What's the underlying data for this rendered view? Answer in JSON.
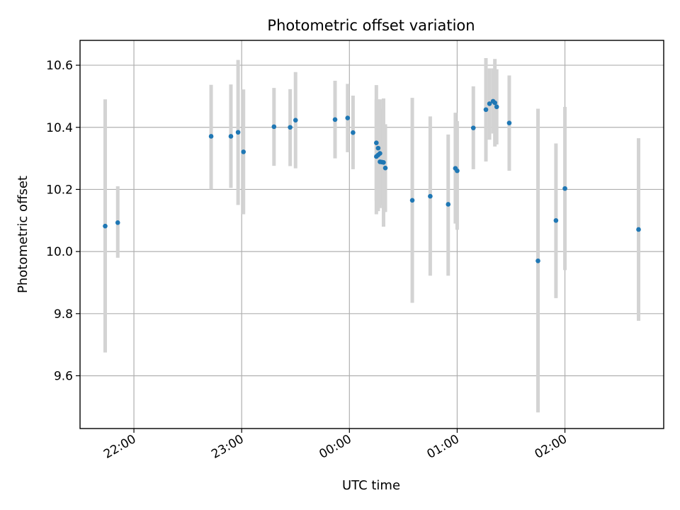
{
  "chart_data": {
    "type": "scatter",
    "title": "Photometric offset variation",
    "xlabel": "UTC time",
    "ylabel": "Photometric offset",
    "xlim": [
      "21:30",
      "02:55"
    ],
    "ylim": [
      9.43,
      10.68
    ],
    "grid": true,
    "x_ticks": [
      "22:00",
      "23:00",
      "00:00",
      "01:00",
      "02:00"
    ],
    "y_ticks": [
      9.6,
      9.8,
      10.0,
      10.2,
      10.4,
      10.6
    ],
    "marker_color": "#1f77b4",
    "errorbar_color": "#d3d3d3",
    "points": [
      {
        "x": "21:44",
        "y": 10.082,
        "ymin": 9.675,
        "ymax": 10.49
      },
      {
        "x": "21:51",
        "y": 10.093,
        "ymin": 9.98,
        "ymax": 10.21
      },
      {
        "x": "22:43",
        "y": 10.371,
        "ymin": 10.2,
        "ymax": 10.537
      },
      {
        "x": "22:54",
        "y": 10.371,
        "ymin": 10.205,
        "ymax": 10.538
      },
      {
        "x": "22:58",
        "y": 10.384,
        "ymin": 10.15,
        "ymax": 10.617
      },
      {
        "x": "23:01",
        "y": 10.321,
        "ymin": 10.12,
        "ymax": 10.522
      },
      {
        "x": "23:18",
        "y": 10.402,
        "ymin": 10.276,
        "ymax": 10.527
      },
      {
        "x": "23:27",
        "y": 10.4,
        "ymin": 10.275,
        "ymax": 10.523
      },
      {
        "x": "23:30",
        "y": 10.423,
        "ymin": 10.268,
        "ymax": 10.578
      },
      {
        "x": "23:52",
        "y": 10.425,
        "ymin": 10.3,
        "ymax": 10.55
      },
      {
        "x": "23:59",
        "y": 10.43,
        "ymin": 10.32,
        "ymax": 10.54
      },
      {
        "x": "00:02",
        "y": 10.383,
        "ymin": 10.265,
        "ymax": 10.502
      },
      {
        "x": "00:15",
        "y": 10.35,
        "ymin": 10.165,
        "ymax": 10.536
      },
      {
        "x": "00:15",
        "y": 10.306,
        "ymin": 10.12,
        "ymax": 10.49
      },
      {
        "x": "00:16",
        "y": 10.333,
        "ymin": 10.19,
        "ymax": 10.476
      },
      {
        "x": "00:16",
        "y": 10.311,
        "ymin": 10.13,
        "ymax": 10.49
      },
      {
        "x": "00:17",
        "y": 10.316,
        "ymin": 10.14,
        "ymax": 10.49
      },
      {
        "x": "00:17",
        "y": 10.289,
        "ymin": 10.16,
        "ymax": 10.42
      },
      {
        "x": "00:18",
        "y": 10.288,
        "ymin": 10.15,
        "ymax": 10.46
      },
      {
        "x": "00:19",
        "y": 10.287,
        "ymin": 10.08,
        "ymax": 10.493
      },
      {
        "x": "00:20",
        "y": 10.269,
        "ymin": 10.127,
        "ymax": 10.41
      },
      {
        "x": "00:35",
        "y": 10.165,
        "ymin": 9.835,
        "ymax": 10.495
      },
      {
        "x": "00:45",
        "y": 10.178,
        "ymin": 9.922,
        "ymax": 10.435
      },
      {
        "x": "00:55",
        "y": 10.152,
        "ymin": 9.922,
        "ymax": 10.377
      },
      {
        "x": "00:59",
        "y": 10.268,
        "ymin": 10.09,
        "ymax": 10.447
      },
      {
        "x": "01:00",
        "y": 10.26,
        "ymin": 10.07,
        "ymax": 10.42
      },
      {
        "x": "01:09",
        "y": 10.398,
        "ymin": 10.265,
        "ymax": 10.532
      },
      {
        "x": "01:16",
        "y": 10.457,
        "ymin": 10.29,
        "ymax": 10.623
      },
      {
        "x": "01:18",
        "y": 10.476,
        "ymin": 10.36,
        "ymax": 10.59
      },
      {
        "x": "01:20",
        "y": 10.484,
        "ymin": 10.38,
        "ymax": 10.59
      },
      {
        "x": "01:21",
        "y": 10.479,
        "ymin": 10.338,
        "ymax": 10.62
      },
      {
        "x": "01:22",
        "y": 10.466,
        "ymin": 10.345,
        "ymax": 10.587
      },
      {
        "x": "01:29",
        "y": 10.414,
        "ymin": 10.26,
        "ymax": 10.567
      },
      {
        "x": "01:45",
        "y": 9.97,
        "ymin": 9.482,
        "ymax": 10.46
      },
      {
        "x": "01:55",
        "y": 10.1,
        "ymin": 9.85,
        "ymax": 10.348
      },
      {
        "x": "02:00",
        "y": 10.203,
        "ymin": 9.94,
        "ymax": 10.466
      },
      {
        "x": "02:41",
        "y": 10.071,
        "ymin": 9.777,
        "ymax": 10.365
      }
    ]
  }
}
